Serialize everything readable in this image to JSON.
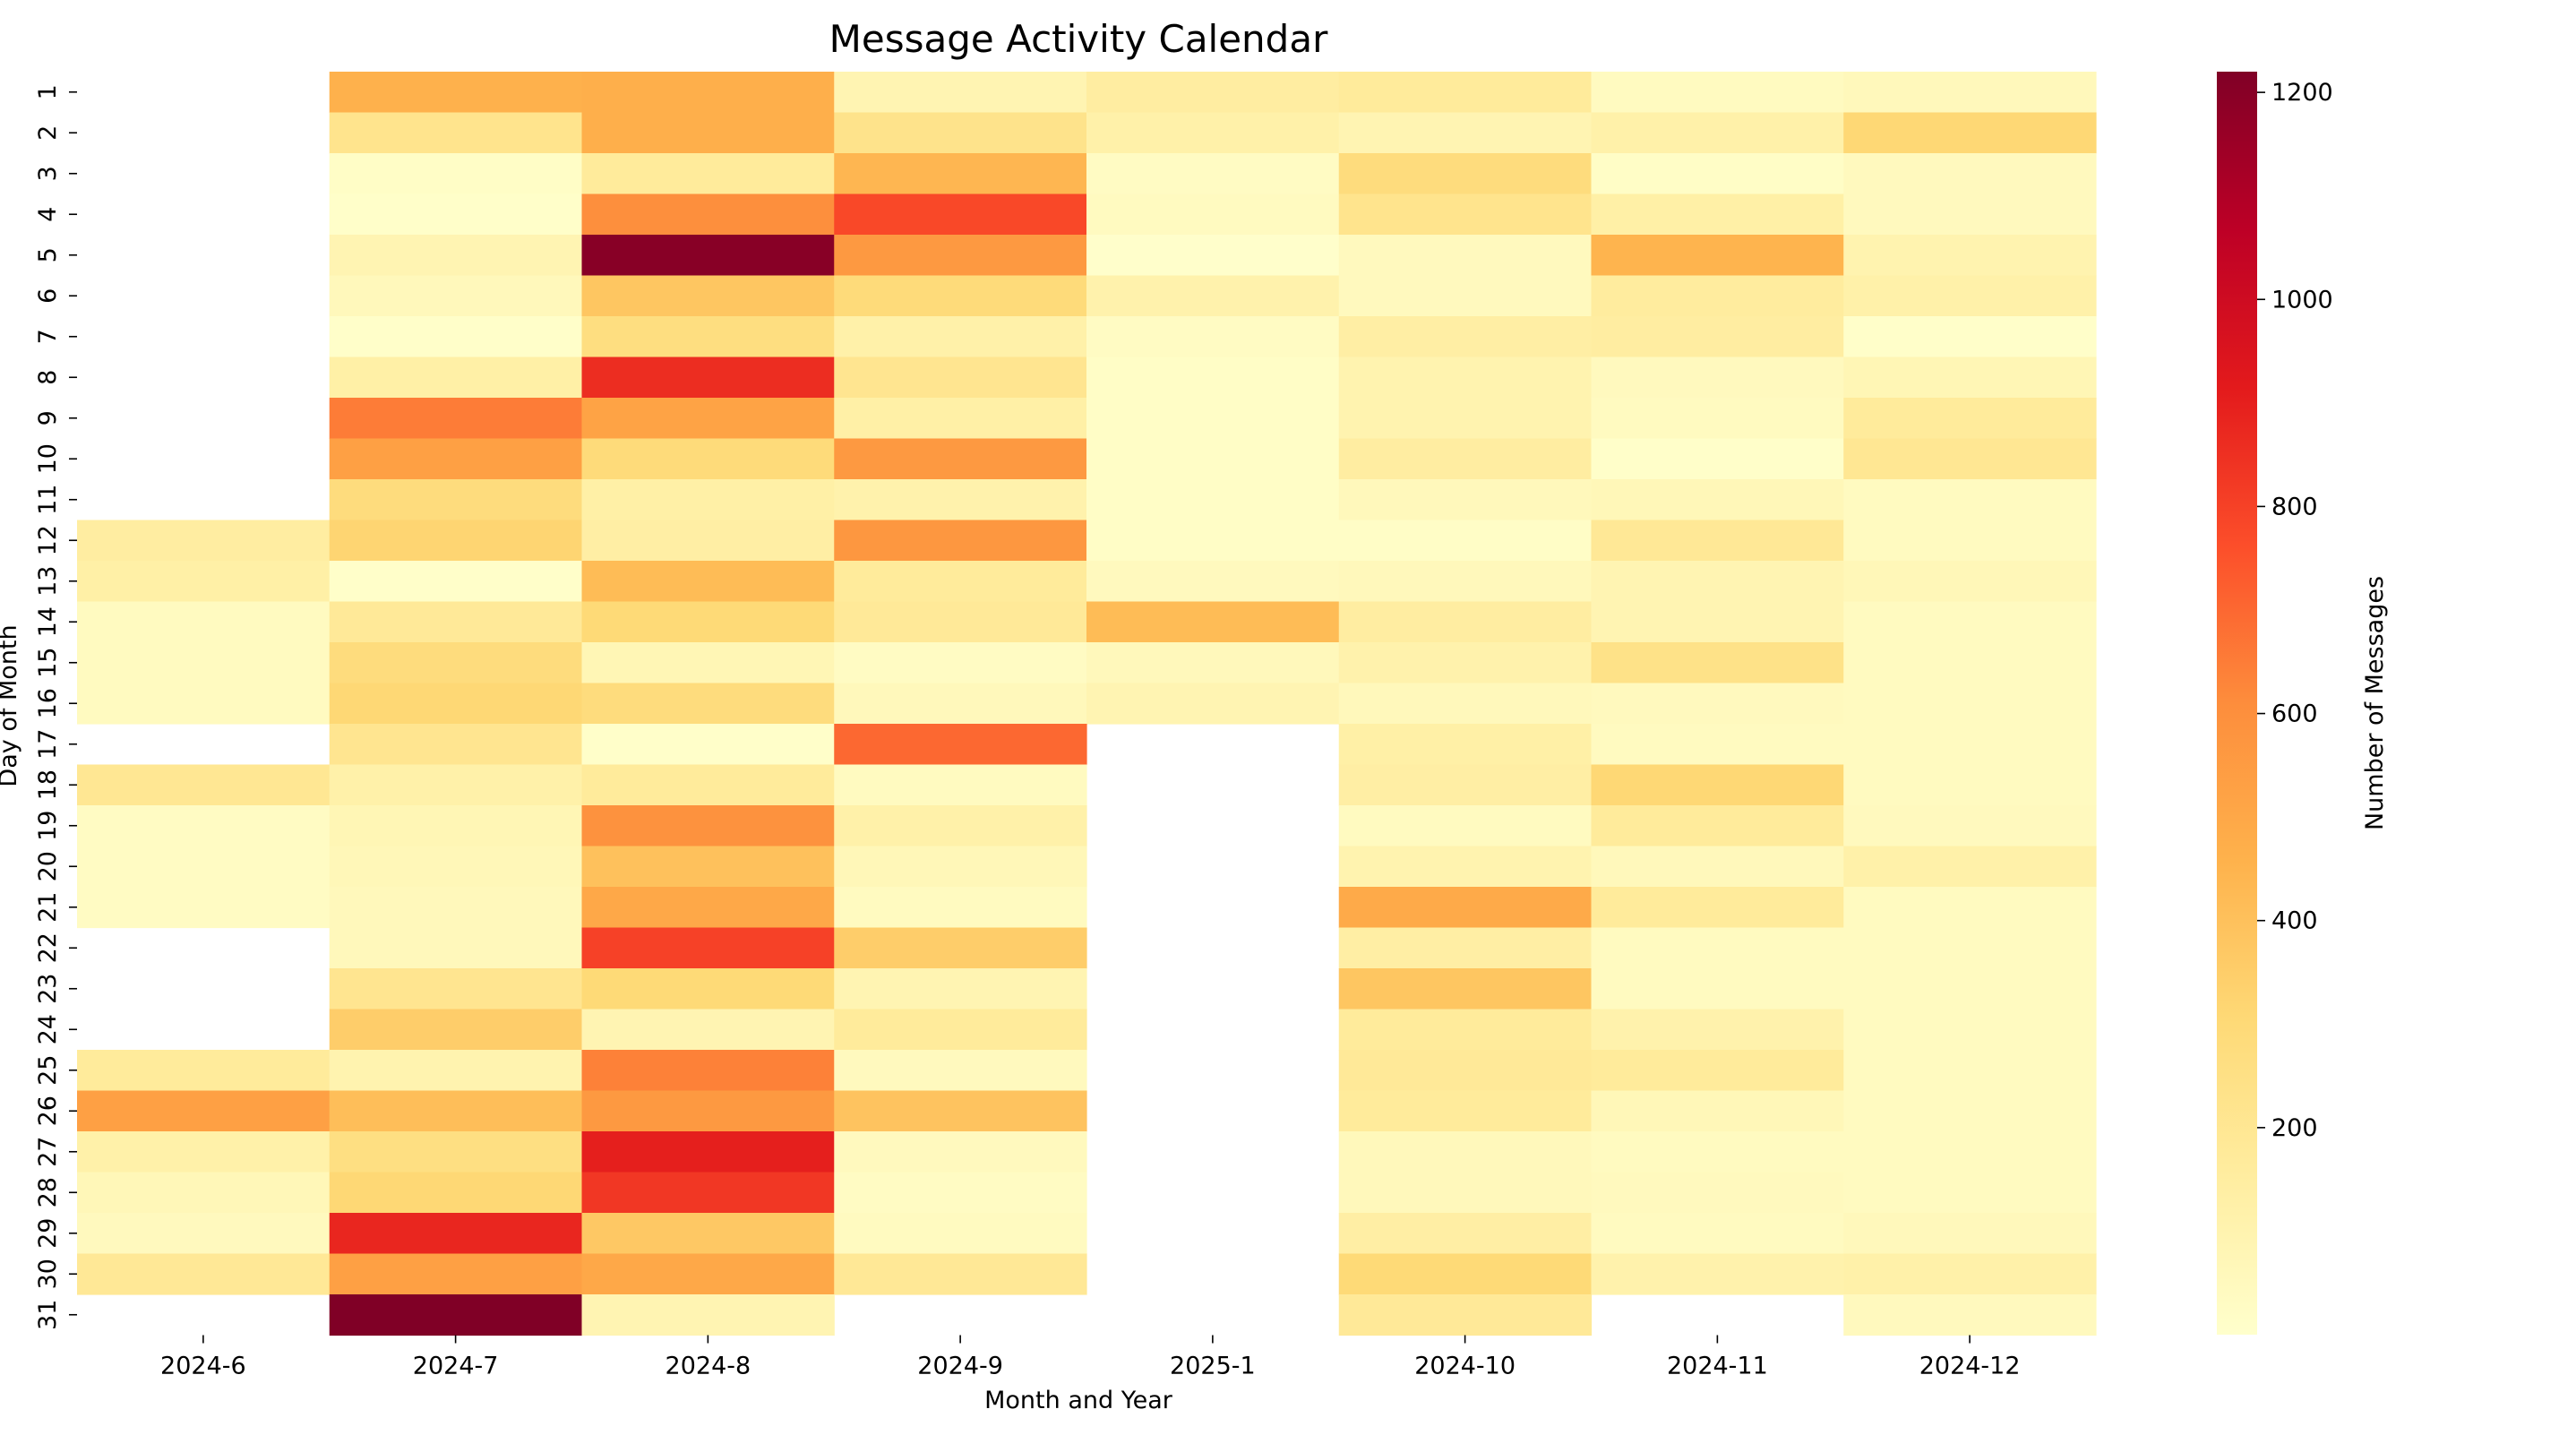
{
  "chart_data": {
    "type": "heatmap",
    "title": "Message Activity Calendar",
    "xlabel": "Month and Year",
    "ylabel": "Day of Month",
    "colorbar_label": "Number of Messages",
    "colormap": "YlOrRd",
    "value_range": [
      0,
      1220
    ],
    "colorbar_ticks": [
      "200",
      "400",
      "600",
      "800",
      "1000",
      "1200"
    ],
    "colorbar_tick_values": [
      200,
      400,
      600,
      800,
      1000,
      1200
    ],
    "x_categories": [
      "2024-6",
      "2024-7",
      "2024-8",
      "2024-9",
      "2025-1",
      "2024-10",
      "2024-11",
      "2024-12"
    ],
    "y_categories": [
      "1",
      "2",
      "3",
      "4",
      "5",
      "6",
      "7",
      "8",
      "9",
      "10",
      "11",
      "12",
      "13",
      "14",
      "15",
      "16",
      "17",
      "18",
      "19",
      "20",
      "21",
      "22",
      "23",
      "24",
      "25",
      "26",
      "27",
      "28",
      "29",
      "30",
      "31"
    ],
    "values": [
      [
        null,
        460,
        470,
        90,
        150,
        170,
        40,
        60
      ],
      [
        null,
        220,
        470,
        230,
        120,
        90,
        120,
        310
      ],
      [
        null,
        20,
        170,
        440,
        30,
        280,
        20,
        50
      ],
      [
        null,
        10,
        600,
        780,
        40,
        220,
        130,
        50
      ],
      [
        null,
        90,
        1200,
        560,
        5,
        50,
        450,
        100
      ],
      [
        null,
        60,
        380,
        290,
        110,
        50,
        160,
        120
      ],
      [
        null,
        10,
        270,
        120,
        30,
        140,
        150,
        10
      ],
      [
        null,
        130,
        860,
        210,
        20,
        100,
        50,
        80
      ],
      [
        null,
        650,
        520,
        130,
        20,
        100,
        40,
        170
      ],
      [
        null,
        530,
        290,
        560,
        20,
        150,
        10,
        200
      ],
      [
        null,
        280,
        130,
        110,
        20,
        60,
        70,
        40
      ],
      [
        150,
        320,
        140,
        570,
        20,
        20,
        190,
        40
      ],
      [
        130,
        10,
        420,
        170,
        50,
        60,
        90,
        70
      ],
      [
        40,
        180,
        300,
        180,
        420,
        150,
        90,
        40
      ],
      [
        40,
        280,
        80,
        30,
        60,
        110,
        240,
        40
      ],
      [
        40,
        310,
        280,
        60,
        90,
        60,
        50,
        40
      ],
      [
        null,
        210,
        10,
        700,
        null,
        130,
        40,
        40
      ],
      [
        200,
        120,
        170,
        40,
        null,
        140,
        310,
        40
      ],
      [
        30,
        80,
        590,
        120,
        null,
        40,
        170,
        50
      ],
      [
        30,
        70,
        400,
        70,
        null,
        100,
        60,
        120
      ],
      [
        30,
        60,
        500,
        40,
        null,
        490,
        170,
        40
      ],
      [
        null,
        60,
        800,
        350,
        null,
        140,
        40,
        40
      ],
      [
        null,
        210,
        300,
        90,
        null,
        380,
        40,
        40
      ],
      [
        null,
        350,
        90,
        170,
        null,
        170,
        110,
        40
      ],
      [
        170,
        100,
        640,
        50,
        null,
        180,
        170,
        40
      ],
      [
        530,
        410,
        560,
        390,
        null,
        170,
        70,
        40
      ],
      [
        120,
        260,
        900,
        50,
        null,
        60,
        40,
        40
      ],
      [
        70,
        310,
        830,
        30,
        null,
        60,
        50,
        40
      ],
      [
        50,
        880,
        370,
        40,
        null,
        140,
        40,
        60
      ],
      [
        190,
        530,
        500,
        190,
        null,
        300,
        110,
        120
      ],
      [
        null,
        1220,
        90,
        null,
        null,
        180,
        null,
        50
      ]
    ]
  }
}
